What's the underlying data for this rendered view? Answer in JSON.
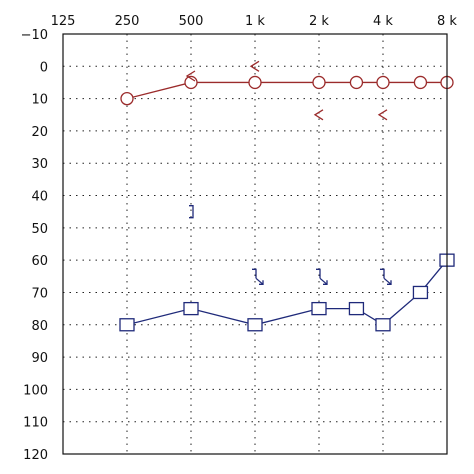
{
  "chart_data": {
    "type": "line",
    "title": "",
    "xlabel": "",
    "ylabel": "",
    "x_scale": "log",
    "x_ticks": [
      {
        "value": 125,
        "label": "125"
      },
      {
        "value": 250,
        "label": "250"
      },
      {
        "value": 500,
        "label": "500"
      },
      {
        "value": 1000,
        "label": "1 k"
      },
      {
        "value": 2000,
        "label": "2 k"
      },
      {
        "value": 4000,
        "label": "4 k"
      },
      {
        "value": 8000,
        "label": "8 k"
      }
    ],
    "y_ticks": [
      -10,
      0,
      10,
      20,
      30,
      40,
      50,
      60,
      70,
      80,
      90,
      100,
      110,
      120
    ],
    "xlim": [
      125,
      8000
    ],
    "ylim": [
      -10,
      120
    ],
    "y_inverted": true,
    "grid": true,
    "series": [
      {
        "marker": "circle",
        "color": "#9b2b2b",
        "points": [
          {
            "x": 250,
            "y": 10
          },
          {
            "x": 500,
            "y": 5
          },
          {
            "x": 1000,
            "y": 5
          },
          {
            "x": 2000,
            "y": 5
          },
          {
            "x": 3000,
            "y": 5
          },
          {
            "x": 4000,
            "y": 5
          },
          {
            "x": 6000,
            "y": 5
          },
          {
            "x": 8000,
            "y": 5
          }
        ]
      },
      {
        "marker": "square",
        "color": "#1f2a7a",
        "points": [
          {
            "x": 250,
            "y": 80
          },
          {
            "x": 500,
            "y": 75
          },
          {
            "x": 1000,
            "y": 80
          },
          {
            "x": 2000,
            "y": 75
          },
          {
            "x": 3000,
            "y": 75
          },
          {
            "x": 4000,
            "y": 80
          },
          {
            "x": 6000,
            "y": 70
          },
          {
            "x": 8000,
            "y": 60
          }
        ]
      }
    ],
    "bone_conduction": [
      {
        "symbol": "<",
        "color": "#9b2b2b",
        "points": [
          {
            "x": 500,
            "y": 3
          },
          {
            "x": 1000,
            "y": 0
          },
          {
            "x": 2000,
            "y": 15
          },
          {
            "x": 4000,
            "y": 15
          }
        ]
      },
      {
        "symbol": "bracket",
        "color": "#1f2a7a",
        "points": [
          {
            "x": 500,
            "y": 45
          }
        ]
      },
      {
        "symbol": "bracket-arrow",
        "color": "#1f2a7a",
        "points": [
          {
            "x": 1000,
            "y": 65
          },
          {
            "x": 2000,
            "y": 65
          },
          {
            "x": 4000,
            "y": 65
          }
        ]
      }
    ]
  }
}
